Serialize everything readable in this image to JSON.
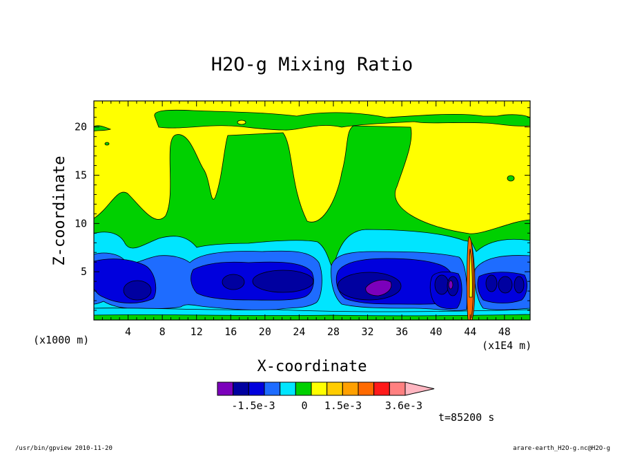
{
  "chart_data": {
    "type": "heatmap",
    "title": "H2O-g Mixing Ratio",
    "xlabel": "X-coordinate",
    "ylabel": "Z-coordinate",
    "x_unit_left": "(x1000 m)",
    "x_unit_right": "(x1E4 m)",
    "xticks": [
      "4",
      "8",
      "12",
      "16",
      "20",
      "24",
      "28",
      "32",
      "36",
      "40",
      "44",
      "48"
    ],
    "yticks": [
      "5",
      "10",
      "15",
      "20"
    ],
    "xlim": [
      0,
      51
    ],
    "ylim": [
      0,
      22.7
    ],
    "colorbar": {
      "colors": [
        "#7b00bb",
        "#0000a0",
        "#0000dd",
        "#1e6cff",
        "#00e5ff",
        "#00d000",
        "#ffff00",
        "#ffcc00",
        "#ffa000",
        "#ff6a00",
        "#ff1a1a",
        "#ff8080",
        "#ffb6c1"
      ],
      "labels": [
        "-1.5e-3",
        "0",
        "1.5e-3",
        "3.6e-3"
      ]
    },
    "time_label": "t=85200 s"
  },
  "footer": {
    "left": "/usr/bin/gpview   2010-11-20",
    "right": "arare-earth_H2O-g.nc@H2O-g"
  }
}
